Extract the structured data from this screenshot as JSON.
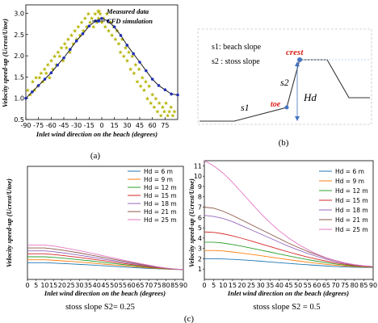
{
  "panels": {
    "a": {
      "caption": "(a)",
      "xlabel": "Inlet wind direction on the beach (degrees)",
      "ylabel": "Velocity speed-up (Ucrest/Utoe)",
      "legend": {
        "measured": "Measured data",
        "cfd": "CFD simulation"
      },
      "xticks": [
        "-90",
        "-75",
        "-60",
        "-45",
        "-30",
        "-15",
        "0",
        "15",
        "30",
        "45",
        "60",
        "75"
      ],
      "yticks": [
        "0.5",
        "1.0",
        "1.5",
        "2.0",
        "2.5",
        "3.0"
      ],
      "colors": {
        "measured": "#b5b300",
        "cfd": "#1f2fb5",
        "line": "#1a1a1a"
      }
    },
    "b": {
      "caption": "(b)",
      "s1_label": "s1: beach slope",
      "s2_label": "s2 : stoss slope",
      "crest": "crest",
      "toe": "toe",
      "s1": "s1",
      "s2": "s2",
      "hd": "Hd",
      "colors": {
        "marker": "#4472c4",
        "label": "#e0201b"
      }
    },
    "c": {
      "caption": "(c)",
      "left_subcaption": "stoss slope S2= 0.25",
      "right_subcaption": "stoss slope S2 = 0.5",
      "xlabel": "Inlet wind direction on the beach (degrees)",
      "ylabel": "Velocity speed-up (Ucrest/Utoe)"
    }
  },
  "chart_data": [
    {
      "type": "line",
      "panel": "a",
      "title": "",
      "xlabel": "Inlet wind direction on the beach (degrees)",
      "ylabel": "Velocity speed-up (Ucrest/Utoe)",
      "xlim": [
        -90,
        90
      ],
      "ylim": [
        0.5,
        3.2
      ],
      "series": [
        {
          "name": "CFD simulation",
          "x": [
            -90,
            -82.5,
            -75,
            -67.5,
            -60,
            -52.5,
            -45,
            -37.5,
            -30,
            -22.5,
            -15,
            -7.5,
            0,
            7.5,
            15,
            22.5,
            30,
            37.5,
            45,
            52.5,
            60,
            67.5,
            75,
            82.5,
            90
          ],
          "y": [
            1.0,
            1.15,
            1.3,
            1.45,
            1.6,
            1.78,
            1.95,
            2.15,
            2.35,
            2.52,
            2.7,
            2.82,
            2.88,
            2.82,
            2.68,
            2.48,
            2.25,
            2.05,
            1.85,
            1.65,
            1.45,
            1.3,
            1.2,
            1.1,
            1.08
          ]
        },
        {
          "name": "Measured data",
          "kind": "scatter",
          "note_points": "dense cloud of measurements around the CFD curve",
          "x": [
            -88,
            -85,
            -82,
            -80,
            -78,
            -76,
            -74,
            -72,
            -70,
            -68,
            -66,
            -64,
            -62,
            -60,
            -58,
            -56,
            -54,
            -52,
            -50,
            -48,
            -46,
            -44,
            -42,
            -40,
            -38,
            -36,
            -34,
            -32,
            -30,
            -28,
            -26,
            -24,
            -22,
            -20,
            -18,
            -16,
            -14,
            -12,
            -10,
            -8,
            -6,
            -4,
            -2,
            0,
            2,
            4,
            6,
            8,
            10,
            12,
            14,
            16,
            18,
            20,
            22,
            24,
            26,
            28,
            30,
            32,
            34,
            36,
            38,
            40,
            42,
            44,
            46,
            48,
            50,
            52,
            54,
            56,
            58,
            60,
            62,
            64,
            66,
            68,
            70,
            72,
            74,
            76,
            78,
            80,
            82,
            84,
            86
          ],
          "y": [
            1.2,
            1.1,
            1.4,
            1.2,
            1.5,
            1.3,
            1.5,
            1.6,
            1.4,
            1.7,
            1.6,
            1.8,
            1.5,
            1.9,
            1.7,
            2.0,
            1.8,
            2.1,
            2.0,
            2.2,
            1.9,
            2.3,
            2.2,
            2.4,
            2.1,
            2.5,
            2.3,
            2.6,
            2.4,
            2.7,
            2.5,
            2.8,
            2.6,
            2.9,
            2.7,
            3.0,
            2.8,
            2.9,
            2.7,
            3.0,
            2.8,
            2.9,
            3.0,
            2.8,
            2.9,
            2.7,
            3.0,
            2.6,
            2.8,
            2.5,
            2.7,
            2.4,
            2.6,
            2.3,
            2.1,
            2.4,
            2.0,
            2.2,
            1.9,
            2.1,
            1.7,
            2.0,
            1.6,
            1.8,
            1.4,
            1.7,
            1.3,
            1.5,
            1.2,
            1.4,
            1.0,
            1.3,
            0.9,
            1.1,
            0.8,
            1.0,
            0.7,
            0.9,
            0.6,
            0.8,
            0.7,
            0.9,
            0.6,
            0.7,
            0.8,
            0.6,
            0.7
          ]
        }
      ]
    },
    {
      "type": "line",
      "panel": "c-left",
      "xlabel": "Inlet wind direction on the beach (degrees)",
      "ylabel": "Velocity speed-up (Ucrest/Utoe)",
      "xlim": [
        0,
        90
      ],
      "ylim": [
        0,
        11.5
      ],
      "xticks": [
        "0",
        "5",
        "10",
        "15",
        "20",
        "25",
        "30",
        "35",
        "40",
        "45",
        "50",
        "55",
        "60",
        "65",
        "70",
        "75",
        "80",
        "85",
        "90"
      ],
      "yticks": [],
      "x": [
        0,
        5,
        10,
        15,
        20,
        25,
        30,
        35,
        40,
        45,
        50,
        55,
        60,
        65,
        70,
        75,
        80,
        85,
        90
      ],
      "series": [
        {
          "name": "Hd = 6 m",
          "color": "#1f77b4",
          "values": [
            1.7,
            1.7,
            1.7,
            1.66,
            1.62,
            1.58,
            1.53,
            1.48,
            1.43,
            1.38,
            1.32,
            1.27,
            1.22,
            1.17,
            1.12,
            1.08,
            1.04,
            1.01,
            1.0
          ]
        },
        {
          "name": "Hd = 9 m",
          "color": "#ff7f0e",
          "values": [
            2.0,
            2.0,
            2.0,
            1.95,
            1.89,
            1.83,
            1.76,
            1.69,
            1.62,
            1.54,
            1.47,
            1.4,
            1.32,
            1.25,
            1.18,
            1.12,
            1.06,
            1.02,
            1.0
          ]
        },
        {
          "name": "Hd = 12 m",
          "color": "#2ca02c",
          "values": [
            2.3,
            2.3,
            2.3,
            2.24,
            2.17,
            2.09,
            2.0,
            1.91,
            1.81,
            1.71,
            1.62,
            1.52,
            1.42,
            1.33,
            1.24,
            1.16,
            1.09,
            1.03,
            1.0
          ]
        },
        {
          "name": "Hd = 15 m",
          "color": "#d62728",
          "values": [
            2.6,
            2.6,
            2.6,
            2.53,
            2.44,
            2.34,
            2.23,
            2.12,
            2.0,
            1.88,
            1.76,
            1.64,
            1.52,
            1.4,
            1.29,
            1.19,
            1.11,
            1.04,
            1.0
          ]
        },
        {
          "name": "Hd = 18 m",
          "color": "#9467bd",
          "values": [
            2.9,
            2.9,
            2.9,
            2.82,
            2.71,
            2.59,
            2.46,
            2.32,
            2.18,
            2.04,
            1.9,
            1.76,
            1.62,
            1.48,
            1.35,
            1.23,
            1.13,
            1.05,
            1.0
          ]
        },
        {
          "name": "Hd = 21 m",
          "color": "#8c564b",
          "values": [
            3.2,
            3.2,
            3.2,
            3.1,
            2.98,
            2.84,
            2.69,
            2.53,
            2.37,
            2.2,
            2.04,
            1.87,
            1.71,
            1.55,
            1.4,
            1.26,
            1.14,
            1.05,
            1.0
          ]
        },
        {
          "name": "Hd = 25 m",
          "color": "#e377c2",
          "values": [
            3.5,
            3.5,
            3.5,
            3.39,
            3.25,
            3.09,
            2.92,
            2.74,
            2.55,
            2.36,
            2.17,
            1.98,
            1.8,
            1.62,
            1.45,
            1.29,
            1.16,
            1.06,
            1.0
          ]
        }
      ]
    },
    {
      "type": "line",
      "panel": "c-right",
      "xlabel": "Inlet wind direction on the beach (degrees)",
      "ylabel": "Velocity speed-up (Ucrest/Utoe)",
      "xlim": [
        0,
        90
      ],
      "ylim": [
        0,
        11.5
      ],
      "xticks": [
        "0",
        "5",
        "10",
        "15",
        "20",
        "25",
        "30",
        "35",
        "40",
        "45",
        "50",
        "55",
        "60",
        "65",
        "70",
        "75",
        "80",
        "85",
        "90"
      ],
      "yticks": [
        "1",
        "2",
        "3",
        "4",
        "5",
        "6",
        "7",
        "8",
        "9",
        "10",
        "11"
      ],
      "x": [
        0,
        5,
        10,
        15,
        20,
        25,
        30,
        35,
        40,
        45,
        50,
        55,
        60,
        65,
        70,
        75,
        80,
        85,
        90
      ],
      "series": [
        {
          "name": "Hd = 6 m",
          "color": "#1f77b4",
          "values": [
            2.0,
            2.0,
            1.98,
            1.94,
            1.89,
            1.83,
            1.76,
            1.69,
            1.62,
            1.55,
            1.48,
            1.42,
            1.36,
            1.3,
            1.25,
            1.21,
            1.18,
            1.16,
            1.15
          ]
        },
        {
          "name": "Hd = 9 m",
          "color": "#ff7f0e",
          "values": [
            2.8,
            2.8,
            2.75,
            2.66,
            2.55,
            2.43,
            2.3,
            2.17,
            2.04,
            1.91,
            1.79,
            1.67,
            1.56,
            1.46,
            1.37,
            1.3,
            1.24,
            1.2,
            1.18
          ]
        },
        {
          "name": "Hd = 12 m",
          "color": "#2ca02c",
          "values": [
            3.6,
            3.6,
            3.52,
            3.38,
            3.21,
            3.03,
            2.84,
            2.65,
            2.46,
            2.27,
            2.09,
            1.92,
            1.76,
            1.62,
            1.49,
            1.38,
            1.3,
            1.24,
            1.21
          ]
        },
        {
          "name": "Hd = 15 m",
          "color": "#d62728",
          "values": [
            4.6,
            4.55,
            4.42,
            4.22,
            3.98,
            3.72,
            3.45,
            3.18,
            2.91,
            2.65,
            2.4,
            2.17,
            1.96,
            1.77,
            1.6,
            1.46,
            1.35,
            1.27,
            1.23
          ]
        },
        {
          "name": "Hd = 18 m",
          "color": "#9467bd",
          "values": [
            6.2,
            6.1,
            5.9,
            5.6,
            5.2,
            4.8,
            4.4,
            4.0,
            3.6,
            3.2,
            2.85,
            2.52,
            2.22,
            1.96,
            1.73,
            1.54,
            1.39,
            1.29,
            1.24
          ]
        },
        {
          "name": "Hd = 21 m",
          "color": "#8c564b",
          "values": [
            7.0,
            6.9,
            6.6,
            6.2,
            5.75,
            5.3,
            4.85,
            4.4,
            3.95,
            3.5,
            3.1,
            2.72,
            2.38,
            2.07,
            1.81,
            1.59,
            1.42,
            1.31,
            1.25
          ]
        },
        {
          "name": "Hd = 25 m",
          "color": "#e377c2",
          "values": [
            11.5,
            11.0,
            10.3,
            9.4,
            8.4,
            7.4,
            6.4,
            5.5,
            4.7,
            4.0,
            3.4,
            2.9,
            2.45,
            2.1,
            1.82,
            1.6,
            1.43,
            1.32,
            1.26
          ]
        }
      ]
    }
  ]
}
